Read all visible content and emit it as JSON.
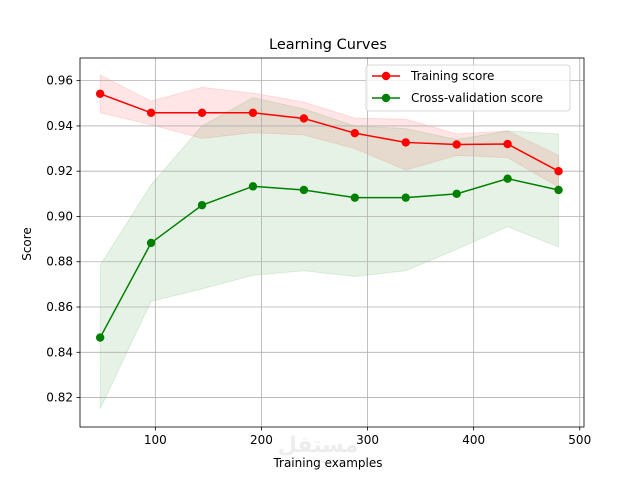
{
  "chart_data": {
    "type": "line",
    "title": "Learning Curves",
    "xlabel": "Training examples",
    "ylabel": "Score",
    "xlim": [
      29,
      504
    ],
    "ylim": [
      0.807,
      0.97
    ],
    "xticks": [
      100,
      200,
      300,
      400,
      500
    ],
    "yticks": [
      0.82,
      0.84,
      0.86,
      0.88,
      0.9,
      0.92,
      0.94,
      0.96
    ],
    "grid": true,
    "legend_position": "top-right",
    "x": [
      48,
      96,
      144,
      192,
      240,
      288,
      336,
      384,
      432,
      480
    ],
    "series": [
      {
        "name": "Training score",
        "color": "#ff0000",
        "values": [
          0.9542,
          0.9458,
          0.9458,
          0.9458,
          0.9433,
          0.9368,
          0.9327,
          0.9318,
          0.932,
          0.92
        ],
        "upper": [
          0.9625,
          0.951,
          0.957,
          0.9545,
          0.9505,
          0.9435,
          0.943,
          0.9365,
          0.9378,
          0.927
        ],
        "lower": [
          0.9458,
          0.9405,
          0.9345,
          0.937,
          0.936,
          0.93,
          0.9205,
          0.927,
          0.926,
          0.913
        ]
      },
      {
        "name": "Cross-validation score",
        "color": "#008000",
        "values": [
          0.8465,
          0.8883,
          0.905,
          0.9133,
          0.9117,
          0.9083,
          0.9083,
          0.91,
          0.9167,
          0.9117
        ],
        "upper": [
          0.8785,
          0.914,
          0.94,
          0.9525,
          0.9475,
          0.94,
          0.9388,
          0.934,
          0.9378,
          0.9365
        ],
        "lower": [
          0.815,
          0.8625,
          0.868,
          0.874,
          0.876,
          0.8735,
          0.876,
          0.8855,
          0.8955,
          0.8865
        ]
      }
    ]
  },
  "watermark": "مستقل"
}
